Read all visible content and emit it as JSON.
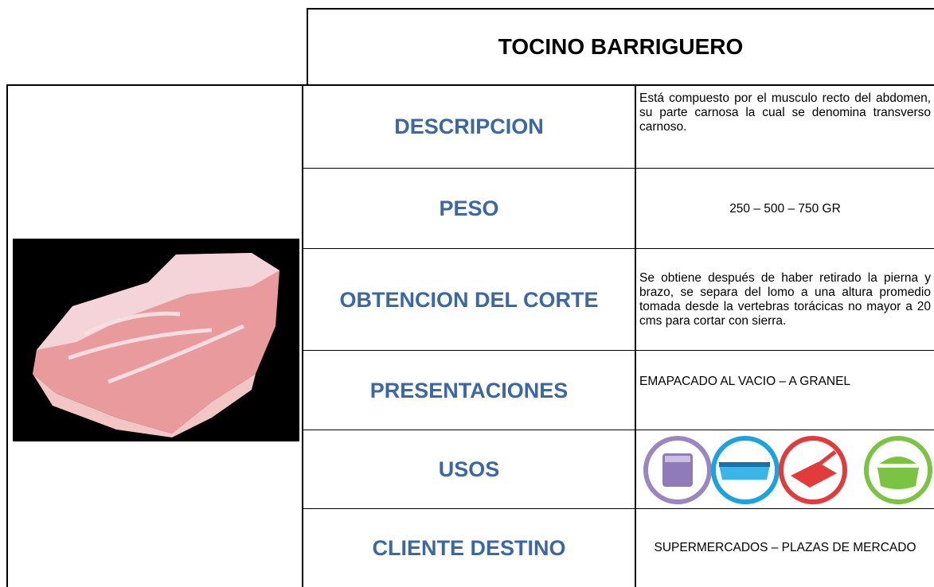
{
  "header": {
    "title": "TOCINO BARRIGUERO"
  },
  "table": {
    "rows": [
      {
        "label": "DESCRIPCION",
        "value": "Está compuesto por el musculo recto del abdomen, su parte carnosa la cual se denomina transverso carnoso."
      },
      {
        "label": "PESO",
        "value": "250 – 500 – 750 GR"
      },
      {
        "label": "OBTENCION DEL CORTE",
        "value": "Se obtiene después de haber retirado la pierna y brazo, se separa del lomo a una altura promedio tomada desde la vertebras torácicas no mayor a 20 cms para cortar con sierra."
      },
      {
        "label": "PRESENTACIONES",
        "value": "EMAPACADO AL VACIO – A GRANEL"
      },
      {
        "label": "USOS"
      },
      {
        "label": "CLIENTE DESTINO",
        "value": "SUPERMERCADOS – PLAZAS DE MERCADO"
      }
    ]
  }
}
